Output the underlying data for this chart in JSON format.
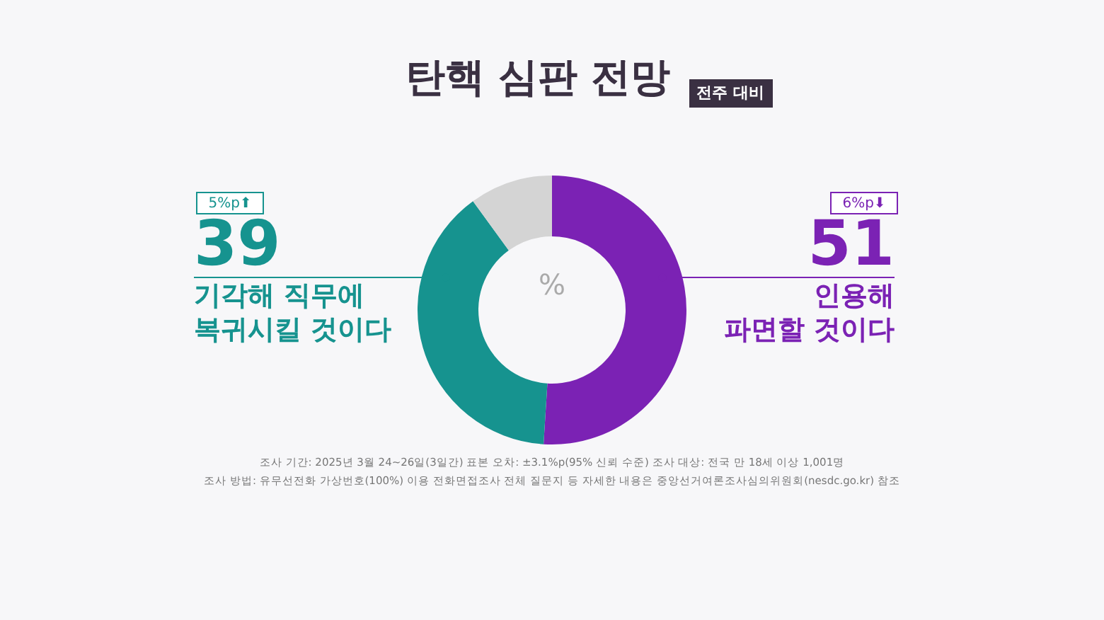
{
  "chart_data": {
    "type": "donut",
    "title": "탄핵 심판 전망",
    "subtitle": "전주 대비",
    "categories": [
      "인용해\n파면할 것이다",
      "기각해 직무에\n복귀시킬 것이다",
      null
    ],
    "values": [
      51,
      39,
      10
    ],
    "colors": [
      "#7b22b4",
      "#16938f",
      "#d4d4d4"
    ],
    "value_labels": [
      "51",
      "39",
      null
    ],
    "annotations": [
      "6%p⬇",
      "5%p⬆",
      "%",
      "조사 기간: 2025년 3월 24~26일(3일간)     표본 오차: ±3.1%p(95% 신뢰 수준)     조사 대상: 전국 만 18세 이상 1,001명",
      "조사 방법: 유무선전화 가상번호(100%) 이용 전화면접조사     전체 질문지 등 자세한 내용은 중앙선거여론조사심의위원회(nesdc.go.kr) 참조"
    ]
  }
}
